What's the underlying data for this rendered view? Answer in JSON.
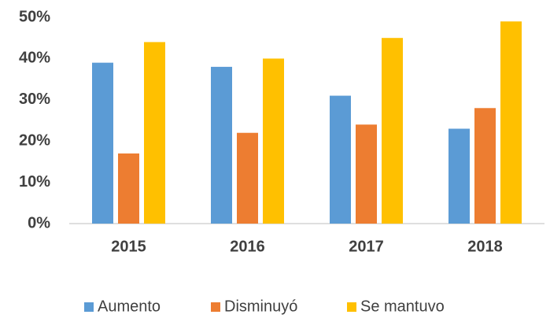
{
  "chart_data": {
    "type": "bar",
    "categories": [
      "2015",
      "2016",
      "2017",
      "2018"
    ],
    "series": [
      {
        "name": "Aumento",
        "color": "#5b9bd5",
        "values": [
          39,
          38,
          31,
          23
        ]
      },
      {
        "name": "Disminuyó",
        "color": "#ed7d31",
        "values": [
          17,
          22,
          24,
          28
        ]
      },
      {
        "name": "Se mantuvo",
        "color": "#ffc000",
        "values": [
          44,
          40,
          45,
          49
        ]
      }
    ],
    "ylim": [
      0,
      50
    ],
    "yticks": [
      {
        "value": 0,
        "label": "0%"
      },
      {
        "value": 10,
        "label": "10%"
      },
      {
        "value": 20,
        "label": "20%"
      },
      {
        "value": 30,
        "label": "30%"
      },
      {
        "value": 40,
        "label": "40%"
      },
      {
        "value": 50,
        "label": "50%"
      }
    ],
    "grid": false,
    "legend": "bottom"
  }
}
